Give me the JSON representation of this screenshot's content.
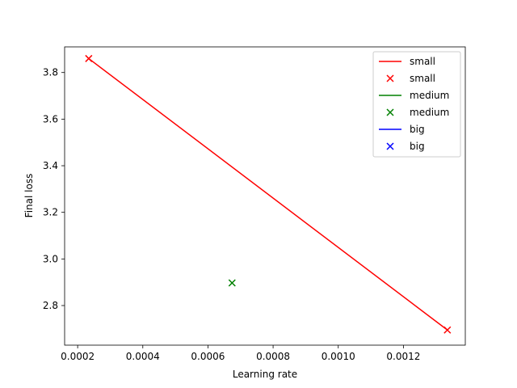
{
  "chart_data": {
    "type": "line",
    "title": "",
    "xlabel": "Learning rate",
    "ylabel": "Final loss",
    "xlim": [
      0.00016,
      0.00139
    ],
    "ylim": [
      2.63,
      3.91
    ],
    "xticks": [
      0.0002,
      0.0004,
      0.0006,
      0.0008,
      0.001,
      0.0012
    ],
    "xtick_labels": [
      "0.0002",
      "0.0004",
      "0.0006",
      "0.0008",
      "0.0010",
      "0.0012"
    ],
    "yticks": [
      2.8,
      3.0,
      3.2,
      3.4,
      3.6,
      3.8
    ],
    "ytick_labels": [
      "2.8",
      "3.0",
      "3.2",
      "3.4",
      "3.6",
      "3.8"
    ],
    "grid": false,
    "legend_position": "top-right",
    "series": [
      {
        "name": "small",
        "kind": "line",
        "color": "#ff0000",
        "x": [
          0.000234,
          0.001335
        ],
        "y": [
          3.86,
          2.695
        ]
      },
      {
        "name": "small",
        "kind": "scatter",
        "color": "#ff0000",
        "marker": "x",
        "x": [
          0.000234,
          0.001335
        ],
        "y": [
          3.86,
          2.695
        ]
      },
      {
        "name": "medium",
        "kind": "line",
        "color": "#008000",
        "x": [
          0.000674
        ],
        "y": [
          2.897
        ]
      },
      {
        "name": "medium",
        "kind": "scatter",
        "color": "#008000",
        "marker": "x",
        "x": [
          0.000674
        ],
        "y": [
          2.897
        ]
      },
      {
        "name": "big",
        "kind": "line",
        "color": "#0000ff",
        "x": [],
        "y": []
      },
      {
        "name": "big",
        "kind": "scatter",
        "color": "#0000ff",
        "marker": "x",
        "x": [],
        "y": []
      }
    ]
  }
}
